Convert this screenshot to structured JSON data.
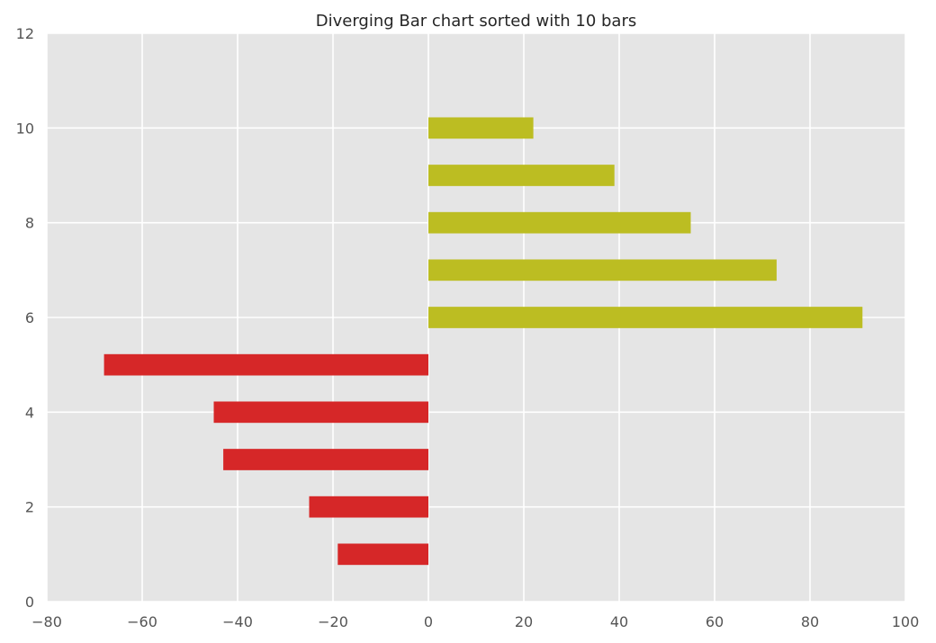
{
  "chart_data": {
    "type": "bar",
    "orientation": "horizontal",
    "title": "Diverging Bar chart sorted with 10 bars",
    "xlabel": "",
    "ylabel": "",
    "xlim": [
      -80,
      100
    ],
    "ylim": [
      0,
      12
    ],
    "x_ticks": [
      -80,
      -60,
      -40,
      -20,
      0,
      20,
      40,
      60,
      80,
      100
    ],
    "y_ticks": [
      0,
      2,
      4,
      6,
      8,
      10,
      12
    ],
    "grid": true,
    "legend": "none",
    "colors": {
      "negative": "#d62728",
      "positive": "#bcbd22",
      "background": "#e5e5e5",
      "grid": "#ffffff"
    },
    "bars": [
      {
        "y": 1,
        "value": -19
      },
      {
        "y": 2,
        "value": -25
      },
      {
        "y": 3,
        "value": -43
      },
      {
        "y": 4,
        "value": -45
      },
      {
        "y": 5,
        "value": -68
      },
      {
        "y": 6,
        "value": 91
      },
      {
        "y": 7,
        "value": 73
      },
      {
        "y": 8,
        "value": 55
      },
      {
        "y": 9,
        "value": 39
      },
      {
        "y": 10,
        "value": 22
      }
    ]
  }
}
